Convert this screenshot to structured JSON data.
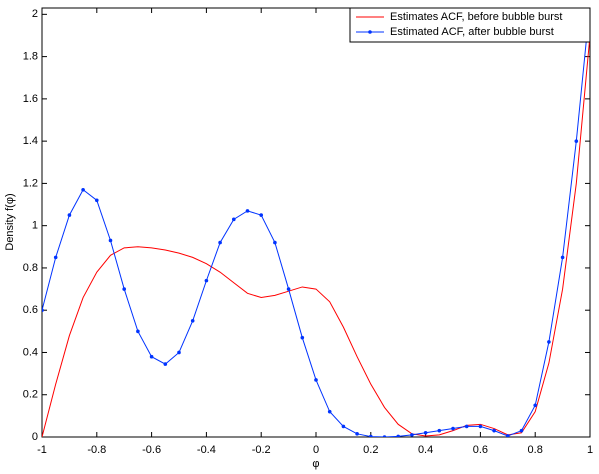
{
  "chart_data": {
    "type": "line",
    "xlabel": "φ",
    "ylabel": "Density f(φ)",
    "x": [
      -1,
      -0.95,
      -0.9,
      -0.85,
      -0.8,
      -0.75,
      -0.7,
      -0.65,
      -0.6,
      -0.55,
      -0.5,
      -0.45,
      -0.4,
      -0.35,
      -0.3,
      -0.25,
      -0.2,
      -0.15,
      -0.1,
      -0.05,
      0,
      0.05,
      0.1,
      0.15,
      0.2,
      0.25,
      0.3,
      0.35,
      0.4,
      0.45,
      0.5,
      0.55,
      0.6,
      0.65,
      0.7,
      0.75,
      0.8,
      0.85,
      0.9,
      0.95,
      1
    ],
    "series": [
      {
        "name": "Estimates ACF, before bubble burst",
        "color": "#ff0000",
        "marker": false,
        "values": [
          0,
          0.25,
          0.48,
          0.66,
          0.78,
          0.86,
          0.895,
          0.9,
          0.895,
          0.885,
          0.87,
          0.85,
          0.82,
          0.78,
          0.73,
          0.68,
          0.66,
          0.67,
          0.69,
          0.71,
          0.7,
          0.64,
          0.52,
          0.38,
          0.25,
          0.14,
          0.06,
          0.015,
          0.005,
          0.01,
          0.03,
          0.055,
          0.06,
          0.04,
          0.01,
          0.02,
          0.12,
          0.35,
          0.7,
          1.2,
          1.9
        ]
      },
      {
        "name": "Estimated ACF, after bubble burst",
        "color": "#0033ff",
        "marker": true,
        "values": [
          0.6,
          0.85,
          1.05,
          1.17,
          1.12,
          0.93,
          0.7,
          0.5,
          0.38,
          0.345,
          0.4,
          0.55,
          0.74,
          0.92,
          1.03,
          1.07,
          1.05,
          0.92,
          0.7,
          0.47,
          0.27,
          0.12,
          0.05,
          0.015,
          0.002,
          0,
          0.003,
          0.01,
          0.02,
          0.03,
          0.04,
          0.05,
          0.05,
          0.03,
          0.005,
          0.03,
          0.15,
          0.45,
          0.85,
          1.4,
          2.05
        ]
      }
    ],
    "xlim": [
      -1,
      1
    ],
    "ylim": [
      0,
      2.03
    ],
    "xticks": [
      -1,
      -0.8,
      -0.6,
      -0.4,
      -0.2,
      0,
      0.2,
      0.4,
      0.6,
      0.8,
      1
    ],
    "yticks": [
      0,
      0.2,
      0.4,
      0.6,
      0.8,
      1,
      1.2,
      1.4,
      1.6,
      1.8,
      2
    ],
    "legend": "top-right"
  }
}
